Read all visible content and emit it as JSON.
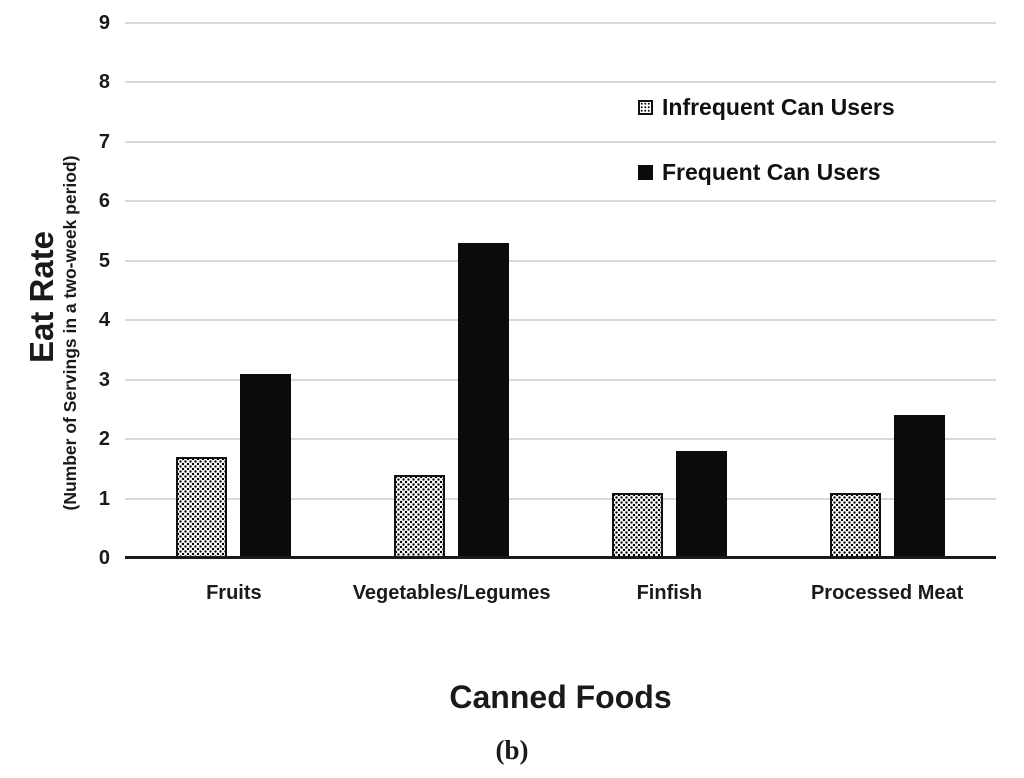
{
  "figure": {
    "caption": "(b)"
  },
  "chart_data": {
    "type": "bar",
    "title": "",
    "xlabel": "Canned Foods",
    "ylabel": "Eat Rate",
    "ylabel_sub": "(Number of Servings in a two-week period)",
    "categories": [
      "Fruits",
      "Vegetables/Legumes",
      "Finfish",
      "Processed Meat"
    ],
    "series": [
      {
        "name": "Infrequent Can Users",
        "style": "stipple",
        "values": [
          1.7,
          1.4,
          1.1,
          1.1
        ]
      },
      {
        "name": "Frequent Can Users",
        "style": "solid",
        "values": [
          3.1,
          5.3,
          1.8,
          2.4
        ]
      }
    ],
    "ylim": [
      0,
      9
    ],
    "yticks": [
      0,
      1,
      2,
      3,
      4,
      5,
      6,
      7,
      8,
      9
    ],
    "grid": true,
    "legend_position": "upper-right",
    "colors": {
      "bar_solid": "#0b0b0b",
      "bar_stipple_fill": "#ffffff",
      "bar_stipple_dot": "#000000",
      "gridline": "#d9d9d9",
      "axis_line": "#1a1a1a",
      "text": "#1a1a1a"
    }
  }
}
